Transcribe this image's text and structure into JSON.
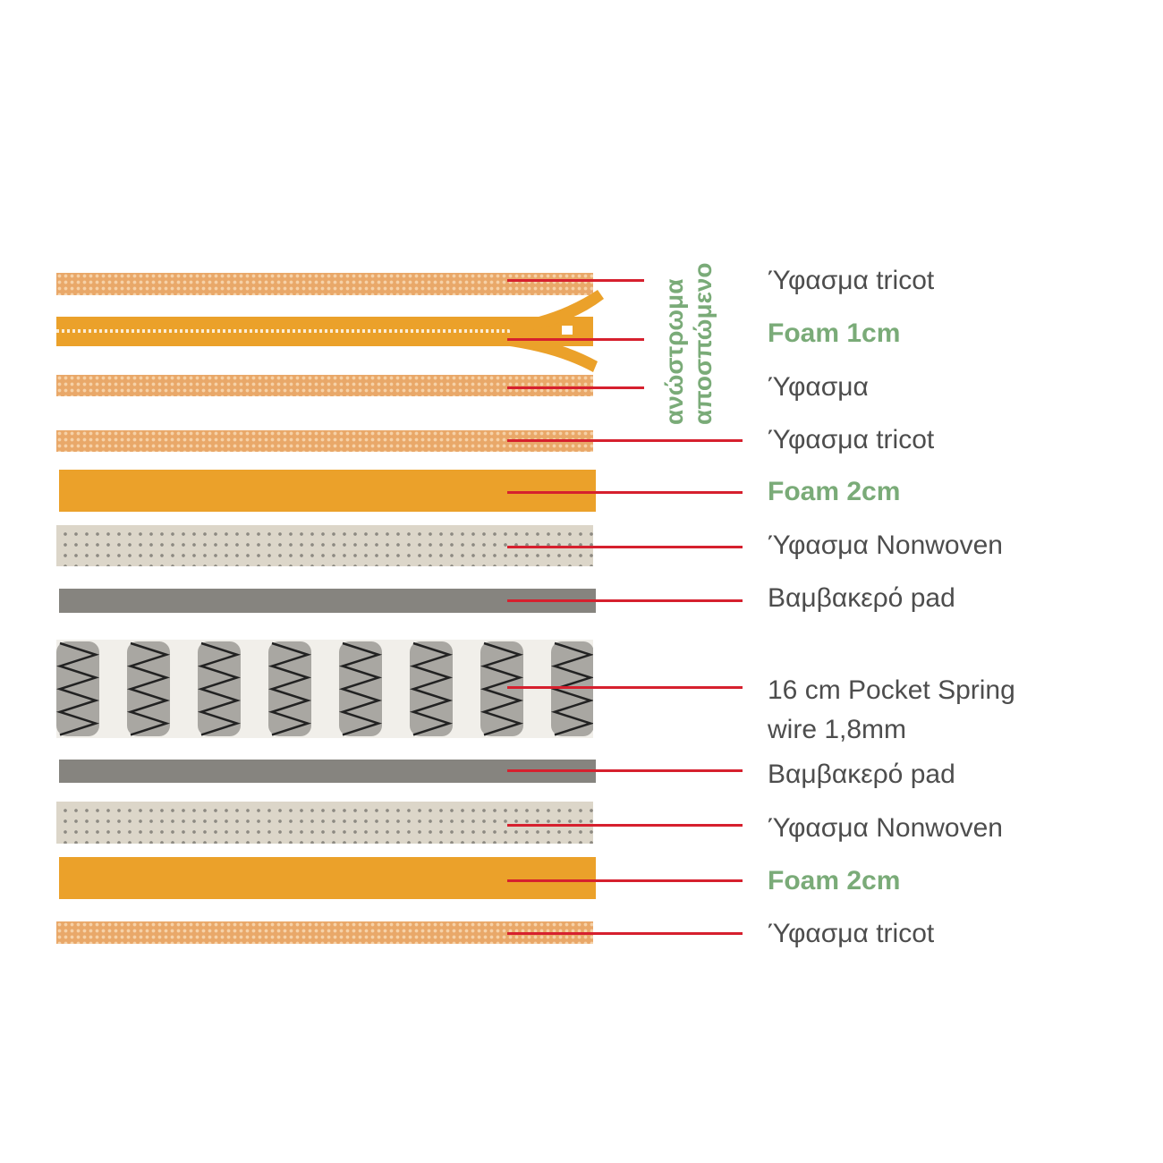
{
  "layers": [
    {
      "label": "Ύφασμα tricot",
      "type": "tricot"
    },
    {
      "label": "Foam 1cm",
      "type": "zipper"
    },
    {
      "label": "Ύφασμα",
      "type": "tricot"
    },
    {
      "label": "Ύφασμα tricot",
      "type": "tricot"
    },
    {
      "label": "Foam 2cm",
      "type": "foam"
    },
    {
      "label": "Ύφασμα Nonwoven",
      "type": "nonwoven"
    },
    {
      "label": "Βαμβακερό pad",
      "type": "pad"
    },
    {
      "label": "16 cm Pocket Spring",
      "label2": "wire 1,8mm",
      "type": "springs"
    },
    {
      "label": "Βαμβακερό pad",
      "type": "pad"
    },
    {
      "label": "Ύφασμα Nonwoven",
      "type": "nonwoven"
    },
    {
      "label": "Foam 2cm",
      "type": "foam"
    },
    {
      "label": "Ύφασμα tricot",
      "type": "tricot"
    }
  ],
  "removable_cover": {
    "line1": "ανώστρωμα",
    "line2": "αποσπώμενο"
  },
  "colors": {
    "leader": "#d6202e",
    "foam": "#eba12a",
    "highlight": "#7aab78",
    "text": "#4d4d4d"
  }
}
